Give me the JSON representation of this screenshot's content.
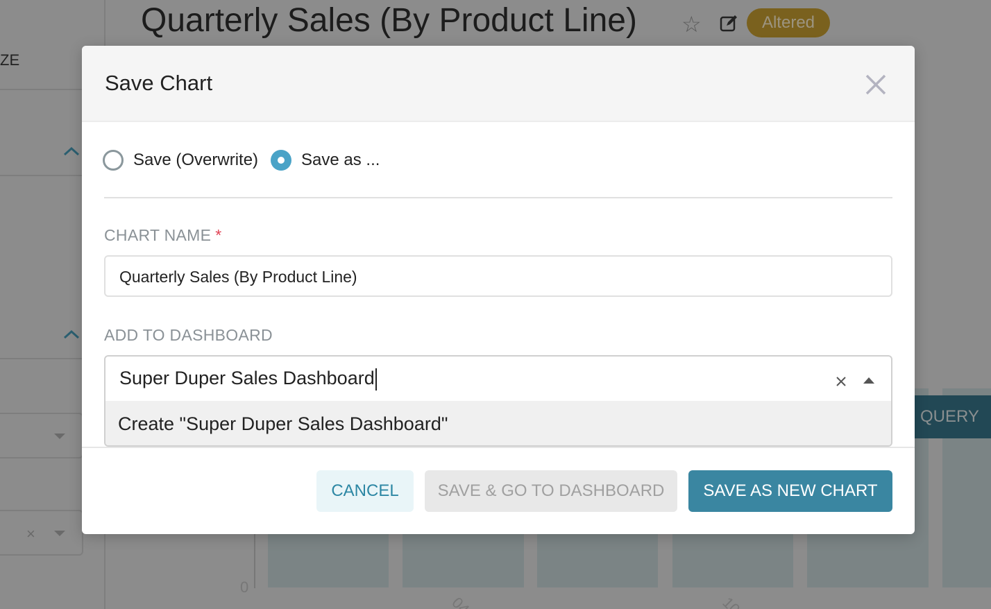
{
  "background": {
    "page_title": "Quarterly Sales (By Product Line)",
    "badge": "Altered",
    "sidebar_partial_label": "ZE",
    "run_query_partial": "QUERY",
    "chart": {
      "y_tick_zero": "0",
      "x_ticks_partial": [
        "04",
        "10"
      ]
    }
  },
  "modal": {
    "title": "Save Chart",
    "radio_overwrite": "Save (Overwrite)",
    "radio_save_as": "Save as ...",
    "selected_option": "save_as",
    "chart_name_label": "CHART NAME",
    "required_mark": "*",
    "chart_name_value": "Quarterly Sales (By Product Line)",
    "dashboard_label": "ADD TO DASHBOARD",
    "dashboard_value": "Super Duper Sales Dashboard",
    "dashboard_option": "Create \"Super Duper Sales Dashboard\"",
    "cancel": "CANCEL",
    "save_go": "SAVE & GO TO DASHBOARD",
    "save_new": "SAVE AS NEW CHART"
  },
  "colors": {
    "primary": "#3a86a1",
    "radio_selected": "#4aa3c7",
    "badge": "#7a611e",
    "required": "#e04355"
  }
}
